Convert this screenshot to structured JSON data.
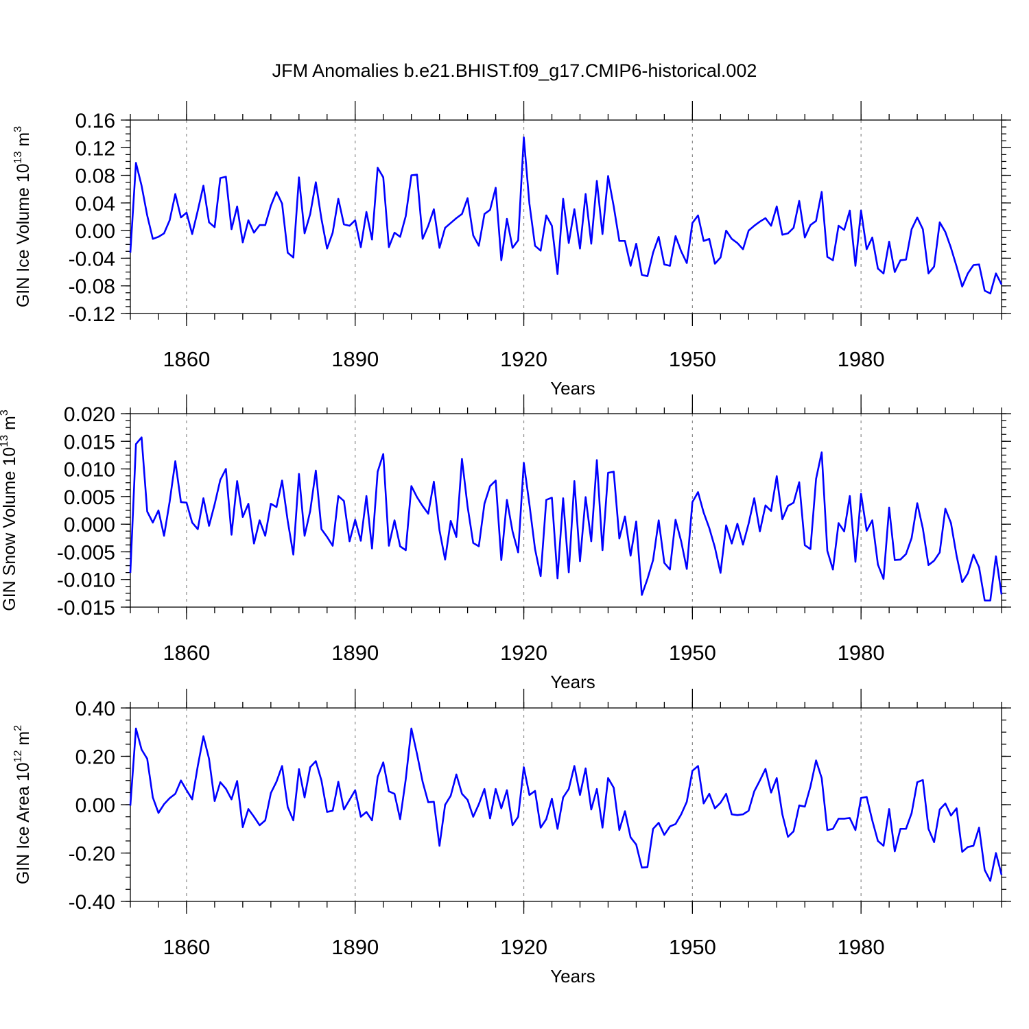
{
  "title": "JFM Anomalies b.e21.BHIST.f09_g17.CMIP6-historical.002",
  "chart_data": [
    {
      "type": "line",
      "title": "JFM Anomalies b.e21.BHIST.f09_g17.CMIP6-historical.002",
      "ylabel_main": "GIN Ice Volume 10",
      "ylabel_exp": "13",
      "ylabel_unit": " m",
      "ylabel_unit_exp": "3",
      "xlabel": "Years",
      "xlim": [
        1850,
        2005
      ],
      "ylim": [
        -0.12,
        0.16
      ],
      "yticks": [
        -0.12,
        -0.08,
        -0.04,
        0.0,
        0.04,
        0.08,
        0.12,
        0.16
      ],
      "ytick_labels": [
        "-0.12",
        "-0.08",
        "-0.04",
        "0.00",
        "0.04",
        "0.08",
        "0.12",
        "0.16"
      ],
      "ytick_minor_step": 0.01,
      "xticks": [
        1860,
        1890,
        1920,
        1950,
        1980
      ],
      "xtick_labels": [
        "1860",
        "1890",
        "1920",
        "1950",
        "1980"
      ],
      "xtick_minor_step": 5,
      "grid": "dashed vertical at major x ticks",
      "series": [
        {
          "name": "GIN Ice Volume",
          "color": "#0000ff",
          "x_start": 1850,
          "values": [
            -0.032,
            0.098,
            0.065,
            0.022,
            -0.012,
            -0.009,
            -0.004,
            0.015,
            0.053,
            0.019,
            0.026,
            -0.005,
            0.029,
            0.065,
            0.012,
            0.005,
            0.076,
            0.078,
            0.002,
            0.035,
            -0.017,
            0.015,
            -0.003,
            0.008,
            0.008,
            0.036,
            0.056,
            0.039,
            -0.032,
            -0.039,
            0.077,
            -0.004,
            0.024,
            0.07,
            0.017,
            -0.026,
            -0.003,
            0.046,
            0.009,
            0.007,
            0.015,
            -0.024,
            0.027,
            -0.013,
            0.091,
            0.077,
            -0.024,
            -0.003,
            -0.009,
            0.021,
            0.08,
            0.081,
            -0.012,
            0.007,
            0.031,
            -0.025,
            0.004,
            0.011,
            0.018,
            0.024,
            0.047,
            -0.007,
            -0.022,
            0.024,
            0.03,
            0.062,
            -0.043,
            0.017,
            -0.025,
            -0.014,
            0.135,
            0.039,
            -0.022,
            -0.029,
            0.022,
            0.007,
            -0.063,
            0.046,
            -0.018,
            0.031,
            -0.026,
            0.053,
            -0.019,
            0.072,
            -0.005,
            0.079,
            0.035,
            -0.015,
            -0.015,
            -0.051,
            -0.019,
            -0.064,
            -0.066,
            -0.032,
            -0.009,
            -0.049,
            -0.051,
            -0.008,
            -0.03,
            -0.047,
            0.011,
            0.022,
            -0.015,
            -0.012,
            -0.048,
            -0.039,
            0.0,
            -0.012,
            -0.018,
            -0.027,
            0.0,
            0.007,
            0.013,
            0.018,
            0.007,
            0.035,
            -0.006,
            -0.004,
            0.004,
            0.043,
            -0.01,
            0.008,
            0.014,
            0.056,
            -0.038,
            -0.043,
            0.007,
            0.001,
            0.029,
            -0.051,
            0.029,
            -0.027,
            -0.01,
            -0.055,
            -0.062,
            -0.016,
            -0.06,
            -0.043,
            -0.042,
            0.002,
            0.019,
            0.002,
            -0.062,
            -0.052,
            0.012,
            -0.002,
            -0.025,
            -0.052,
            -0.081,
            -0.062,
            -0.05,
            -0.049,
            -0.087,
            -0.091,
            -0.062,
            -0.078
          ]
        }
      ]
    },
    {
      "type": "line",
      "ylabel_main": "GIN Snow Volume 10",
      "ylabel_exp": "13",
      "ylabel_unit": " m",
      "ylabel_unit_exp": "3",
      "xlabel": "Years",
      "xlim": [
        1850,
        2005
      ],
      "ylim": [
        -0.015,
        0.02
      ],
      "yticks": [
        -0.015,
        -0.01,
        -0.005,
        0.0,
        0.005,
        0.01,
        0.015,
        0.02
      ],
      "ytick_labels": [
        "-0.015",
        "-0.010",
        "-0.005",
        "0.000",
        "0.005",
        "0.010",
        "0.015",
        "0.020"
      ],
      "ytick_minor_step": 0.00125,
      "xticks": [
        1860,
        1890,
        1920,
        1950,
        1980
      ],
      "xtick_labels": [
        "1860",
        "1890",
        "1920",
        "1950",
        "1980"
      ],
      "xtick_minor_step": 5,
      "grid": "dashed vertical at major x ticks",
      "series": [
        {
          "name": "GIN Snow Volume",
          "color": "#0000ff",
          "x_start": 1850,
          "values": [
            -0.0088,
            0.0145,
            0.0157,
            0.0023,
            0.0003,
            0.0025,
            -0.0021,
            0.0041,
            0.0114,
            0.004,
            0.0039,
            0.0003,
            -0.0009,
            0.0047,
            -0.0003,
            0.0036,
            0.008,
            0.01,
            -0.0019,
            0.0078,
            0.0013,
            0.0037,
            -0.0035,
            0.0007,
            -0.0021,
            0.0037,
            0.0031,
            0.0079,
            0.0006,
            -0.0055,
            0.0091,
            -0.0021,
            0.0024,
            0.0097,
            -0.0009,
            -0.0023,
            -0.0039,
            0.0051,
            0.0042,
            -0.0031,
            0.0008,
            -0.003,
            0.0051,
            -0.0044,
            0.0095,
            0.0127,
            -0.0039,
            0.0007,
            -0.004,
            -0.0047,
            0.0069,
            0.0049,
            0.0033,
            0.0019,
            0.0077,
            -0.0011,
            -0.0064,
            0.0006,
            -0.0023,
            0.0118,
            0.0032,
            -0.0034,
            -0.004,
            0.0037,
            0.0069,
            0.0079,
            -0.0065,
            0.0044,
            -0.0013,
            -0.0051,
            0.0111,
            0.0036,
            -0.0045,
            -0.0094,
            0.0044,
            0.0048,
            -0.0098,
            0.0047,
            -0.0087,
            0.0078,
            -0.0067,
            0.0049,
            -0.0031,
            0.0116,
            -0.0047,
            0.0093,
            0.0095,
            -0.0026,
            0.0014,
            -0.0057,
            0.0005,
            -0.0128,
            -0.0099,
            -0.0065,
            0.0007,
            -0.007,
            -0.0082,
            0.0008,
            -0.0031,
            -0.0081,
            0.004,
            0.0058,
            0.0021,
            -0.0007,
            -0.0042,
            -0.0088,
            -0.0002,
            -0.0035,
            0.0001,
            -0.0037,
            0.0001,
            0.0047,
            -0.0013,
            0.0034,
            0.0024,
            0.0087,
            0.0009,
            0.0033,
            0.0039,
            0.0076,
            -0.0038,
            -0.0045,
            0.0082,
            0.013,
            -0.0048,
            -0.0082,
            0.0002,
            -0.0013,
            0.0051,
            -0.0068,
            0.0055,
            -0.0012,
            0.0007,
            -0.0073,
            -0.0099,
            0.003,
            -0.0065,
            -0.0064,
            -0.0054,
            -0.0025,
            0.0038,
            -0.0008,
            -0.0074,
            -0.0066,
            -0.0051,
            0.0028,
            0.0002,
            -0.0057,
            -0.0105,
            -0.0089,
            -0.0055,
            -0.0078,
            -0.0138,
            -0.0138,
            -0.0058,
            -0.0127
          ]
        }
      ]
    },
    {
      "type": "line",
      "ylabel_main": "GIN Ice Area 10",
      "ylabel_exp": "12",
      "ylabel_unit": " m",
      "ylabel_unit_exp": "2",
      "xlabel": "Years",
      "xlim": [
        1850,
        2005
      ],
      "ylim": [
        -0.4,
        0.4
      ],
      "yticks": [
        -0.4,
        -0.2,
        0.0,
        0.2,
        0.4
      ],
      "ytick_labels": [
        "-0.40",
        "-0.20",
        "0.00",
        "0.20",
        "0.40"
      ],
      "ytick_minor_step": 0.05,
      "xticks": [
        1860,
        1890,
        1920,
        1950,
        1980
      ],
      "xtick_labels": [
        "1860",
        "1890",
        "1920",
        "1950",
        "1980"
      ],
      "xtick_minor_step": 5,
      "grid": "dashed vertical at major x ticks",
      "series": [
        {
          "name": "GIN Ice Area",
          "color": "#0000ff",
          "x_start": 1850,
          "values": [
            -0.004,
            0.315,
            0.228,
            0.19,
            0.03,
            -0.034,
            0.002,
            0.027,
            0.045,
            0.1,
            0.06,
            0.022,
            0.16,
            0.283,
            0.19,
            0.015,
            0.093,
            0.066,
            0.022,
            0.098,
            -0.093,
            -0.018,
            -0.05,
            -0.085,
            -0.065,
            0.048,
            0.095,
            0.16,
            -0.01,
            -0.065,
            0.147,
            0.03,
            0.155,
            0.18,
            0.1,
            -0.03,
            -0.025,
            0.095,
            -0.02,
            0.02,
            0.06,
            -0.05,
            -0.03,
            -0.065,
            0.115,
            0.175,
            0.055,
            0.045,
            -0.06,
            0.105,
            0.315,
            0.21,
            0.095,
            0.01,
            0.012,
            -0.17,
            -0.001,
            0.037,
            0.125,
            0.045,
            0.02,
            -0.05,
            0.002,
            0.065,
            -0.057,
            0.065,
            -0.015,
            0.06,
            -0.085,
            -0.05,
            0.155,
            0.04,
            0.057,
            -0.095,
            -0.06,
            0.025,
            -0.1,
            0.03,
            0.065,
            0.16,
            0.04,
            0.15,
            -0.02,
            0.065,
            -0.095,
            0.11,
            0.07,
            -0.105,
            -0.027,
            -0.135,
            -0.165,
            -0.26,
            -0.258,
            -0.1,
            -0.075,
            -0.125,
            -0.09,
            -0.08,
            -0.04,
            0.012,
            0.14,
            0.16,
            0.005,
            0.045,
            -0.015,
            0.008,
            0.045,
            -0.04,
            -0.043,
            -0.04,
            -0.025,
            0.055,
            0.1,
            0.148,
            0.05,
            0.11,
            -0.04,
            -0.133,
            -0.11,
            -0.003,
            -0.008,
            0.075,
            0.183,
            0.11,
            -0.105,
            -0.1,
            -0.058,
            -0.058,
            -0.055,
            -0.105,
            0.028,
            0.032,
            -0.065,
            -0.15,
            -0.17,
            -0.018,
            -0.193,
            -0.1,
            -0.1,
            -0.035,
            0.093,
            0.102,
            -0.1,
            -0.155,
            -0.02,
            0.005,
            -0.045,
            -0.015,
            -0.195,
            -0.175,
            -0.17,
            -0.095,
            -0.27,
            -0.315,
            -0.2,
            -0.29
          ]
        }
      ]
    }
  ]
}
